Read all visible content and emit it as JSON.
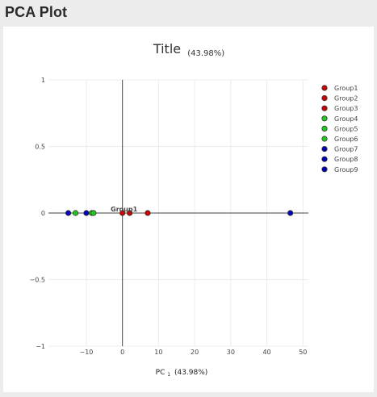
{
  "page": {
    "heading": "PCA Plot"
  },
  "chart_data": {
    "type": "scatter",
    "title": "Title",
    "title_variance": "(43.98%)",
    "xlabel_main": "PC",
    "xlabel_sub": "1",
    "xlabel_variance": "(43.98%)",
    "xlim": [
      -20.5,
      51.5
    ],
    "ylim": [
      -1,
      1
    ],
    "xticks": [
      -10,
      0,
      10,
      20,
      30,
      40,
      50
    ],
    "xtick_labels": [
      "−10",
      "0",
      "10",
      "20",
      "30",
      "40",
      "50"
    ],
    "yticks": [
      1,
      0.5,
      0,
      -0.5,
      -1
    ],
    "ytick_labels": [
      "1",
      "0.5",
      "0",
      "−0.5",
      "−1"
    ],
    "grid": true,
    "legend_position": "right",
    "annotation": "Group1",
    "series": [
      {
        "name": "Group1",
        "color": "#cc0000",
        "x": [
          7
        ],
        "y": [
          0
        ]
      },
      {
        "name": "Group2",
        "color": "#cc0000",
        "x": [
          2
        ],
        "y": [
          0
        ]
      },
      {
        "name": "Group3",
        "color": "#cc0000",
        "x": [
          0
        ],
        "y": [
          0
        ]
      },
      {
        "name": "Group4",
        "color": "#1ecc1e",
        "x": [
          -8.5
        ],
        "y": [
          0
        ]
      },
      {
        "name": "Group5",
        "color": "#1ecc1e",
        "x": [
          -8
        ],
        "y": [
          0
        ]
      },
      {
        "name": "Group6",
        "color": "#1ecc1e",
        "x": [
          -13
        ],
        "y": [
          0
        ]
      },
      {
        "name": "Group7",
        "color": "#0000bb",
        "x": [
          -10
        ],
        "y": [
          0
        ]
      },
      {
        "name": "Group8",
        "color": "#0000bb",
        "x": [
          -15
        ],
        "y": [
          0
        ]
      },
      {
        "name": "Group9",
        "color": "#0000bb",
        "x": [
          46.5
        ],
        "y": [
          0
        ]
      }
    ]
  }
}
